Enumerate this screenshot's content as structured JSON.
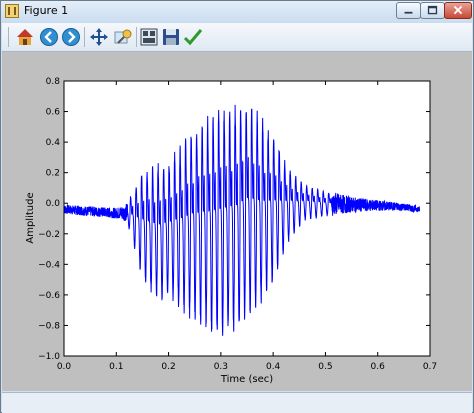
{
  "window": {
    "title": "Figure 1"
  },
  "toolbar": {
    "buttons": [
      {
        "name": "home-button",
        "icon": "home-icon"
      },
      {
        "name": "back-button",
        "icon": "back-arrow-icon"
      },
      {
        "name": "forward-button",
        "icon": "forward-arrow-icon"
      },
      {
        "name": "pan-button",
        "icon": "pan-arrows-icon"
      },
      {
        "name": "zoom-button",
        "icon": "zoom-rect-icon"
      },
      {
        "name": "subplots-button",
        "icon": "subplots-icon"
      },
      {
        "name": "save-button",
        "icon": "floppy-disk-icon"
      },
      {
        "name": "edit-axes-button",
        "icon": "checkmark-icon"
      }
    ]
  },
  "chart_data": {
    "type": "line",
    "xlabel": "Time (sec)",
    "ylabel": "Amplitude",
    "xlim": [
      0.0,
      0.7
    ],
    "ylim": [
      -1.0,
      0.8
    ],
    "xticks": [
      "0.0",
      "0.1",
      "0.2",
      "0.3",
      "0.4",
      "0.5",
      "0.6",
      "0.7"
    ],
    "yticks": [
      "0.8",
      "0.6",
      "0.4",
      "0.2",
      "0.0",
      "−0.2",
      "−0.4",
      "−0.6",
      "−0.8",
      "−1.0"
    ],
    "series_color": "#0000ff",
    "grid": false,
    "envelope": {
      "time": [
        0.0,
        0.1,
        0.12,
        0.15,
        0.18,
        0.2,
        0.22,
        0.25,
        0.28,
        0.3,
        0.33,
        0.35,
        0.38,
        0.4,
        0.43,
        0.46,
        0.5,
        0.55,
        0.6,
        0.65,
        0.68
      ],
      "max": [
        -0.01,
        -0.03,
        0.0,
        0.26,
        0.33,
        0.33,
        0.45,
        0.58,
        0.7,
        0.73,
        0.76,
        0.78,
        0.64,
        0.52,
        0.26,
        0.14,
        0.09,
        0.04,
        0.02,
        0.0,
        -0.02
      ],
      "min": [
        -0.07,
        -0.1,
        -0.12,
        -0.52,
        -0.68,
        -0.64,
        -0.74,
        -0.8,
        -0.9,
        -0.92,
        -0.9,
        -0.82,
        -0.7,
        -0.55,
        -0.26,
        -0.12,
        -0.09,
        -0.06,
        -0.05,
        -0.05,
        -0.06
      ]
    }
  }
}
